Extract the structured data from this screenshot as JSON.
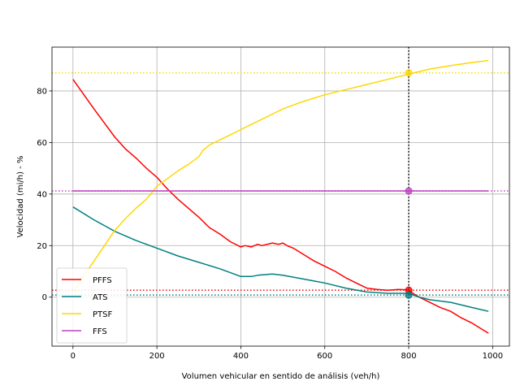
{
  "chart_data": {
    "type": "line",
    "xlabel": "Volumen vehicular en sentido de análisis (veh/h)",
    "ylabel": "Velocidad (mi/h) - %",
    "xlim": [
      -50,
      1040
    ],
    "ylim": [
      -19,
      97
    ],
    "xticks": [
      0,
      200,
      400,
      600,
      800,
      1000
    ],
    "yticks": [
      0,
      20,
      40,
      60,
      80
    ],
    "grid": true,
    "legend_position": "lower-left",
    "series": [
      {
        "name": "PFFS",
        "color": "#ff0000",
        "points": [
          [
            0,
            84.5
          ],
          [
            50,
            73
          ],
          [
            100,
            62
          ],
          [
            125,
            57.5
          ],
          [
            150,
            54
          ],
          [
            175,
            50
          ],
          [
            200,
            46.5
          ],
          [
            225,
            42
          ],
          [
            250,
            38
          ],
          [
            275,
            34.5
          ],
          [
            300,
            31
          ],
          [
            325,
            27
          ],
          [
            350,
            24.5
          ],
          [
            375,
            21.5
          ],
          [
            400,
            19.5
          ],
          [
            410,
            20
          ],
          [
            425,
            19.5
          ],
          [
            440,
            20.5
          ],
          [
            450,
            20
          ],
          [
            475,
            21
          ],
          [
            490,
            20.5
          ],
          [
            500,
            21
          ],
          [
            510,
            20
          ],
          [
            525,
            19
          ],
          [
            550,
            16.5
          ],
          [
            575,
            14
          ],
          [
            600,
            12
          ],
          [
            625,
            10
          ],
          [
            650,
            7.5
          ],
          [
            675,
            5.5
          ],
          [
            700,
            3.5
          ],
          [
            725,
            3
          ],
          [
            750,
            2.7
          ],
          [
            775,
            3
          ],
          [
            800,
            2.8
          ],
          [
            810,
            1.5
          ],
          [
            825,
            0
          ],
          [
            850,
            -2
          ],
          [
            875,
            -4
          ],
          [
            900,
            -5.5
          ],
          [
            925,
            -8
          ],
          [
            950,
            -10
          ],
          [
            975,
            -12.5
          ],
          [
            990,
            -14
          ]
        ]
      },
      {
        "name": "ATS",
        "color": "#008080",
        "points": [
          [
            0,
            35
          ],
          [
            50,
            30
          ],
          [
            100,
            25.5
          ],
          [
            150,
            22
          ],
          [
            200,
            19
          ],
          [
            250,
            16
          ],
          [
            300,
            13.5
          ],
          [
            350,
            11
          ],
          [
            400,
            8
          ],
          [
            425,
            8
          ],
          [
            440,
            8.5
          ],
          [
            475,
            9
          ],
          [
            500,
            8.5
          ],
          [
            550,
            7
          ],
          [
            600,
            5.5
          ],
          [
            650,
            3.5
          ],
          [
            700,
            2
          ],
          [
            750,
            1.5
          ],
          [
            800,
            1.5
          ],
          [
            825,
            0
          ],
          [
            850,
            -1
          ],
          [
            900,
            -2
          ],
          [
            950,
            -4
          ],
          [
            990,
            -5.5
          ]
        ]
      },
      {
        "name": "PTSF",
        "color": "#ffd700",
        "points": [
          [
            0,
            2
          ],
          [
            25,
            8
          ],
          [
            50,
            14
          ],
          [
            75,
            20
          ],
          [
            100,
            26
          ],
          [
            125,
            30.5
          ],
          [
            150,
            34.5
          ],
          [
            175,
            38
          ],
          [
            200,
            43
          ],
          [
            225,
            46
          ],
          [
            250,
            49
          ],
          [
            275,
            51.5
          ],
          [
            300,
            54.5
          ],
          [
            310,
            57
          ],
          [
            325,
            59
          ],
          [
            350,
            61
          ],
          [
            375,
            63
          ],
          [
            400,
            65
          ],
          [
            425,
            67
          ],
          [
            450,
            69
          ],
          [
            475,
            71
          ],
          [
            500,
            73
          ],
          [
            550,
            76
          ],
          [
            600,
            78.5
          ],
          [
            650,
            80.5
          ],
          [
            700,
            82.5
          ],
          [
            750,
            84.5
          ],
          [
            800,
            86.5
          ],
          [
            850,
            88.5
          ],
          [
            900,
            89.8
          ],
          [
            950,
            91
          ],
          [
            990,
            91.8
          ]
        ]
      },
      {
        "name": "FFS",
        "color": "#bf40bf",
        "points": [
          [
            0,
            41.2
          ],
          [
            990,
            41.2
          ]
        ]
      }
    ],
    "reference_lines": {
      "vertical": {
        "x": 800,
        "color": "#000000"
      },
      "horizontal": [
        {
          "y": 87,
          "color": "#ffd700"
        },
        {
          "y": 41.2,
          "color": "#bf40bf"
        },
        {
          "y": 2.7,
          "color": "#ff0000"
        },
        {
          "y": 0.8,
          "color": "#008080"
        }
      ]
    },
    "markers": [
      {
        "x": 800,
        "y": 87,
        "color": "#ffd700"
      },
      {
        "x": 800,
        "y": 41.2,
        "color": "#bf40bf"
      },
      {
        "x": 800,
        "y": 2.7,
        "color": "#ff0000"
      },
      {
        "x": 800,
        "y": 0.8,
        "color": "#008080"
      }
    ]
  }
}
